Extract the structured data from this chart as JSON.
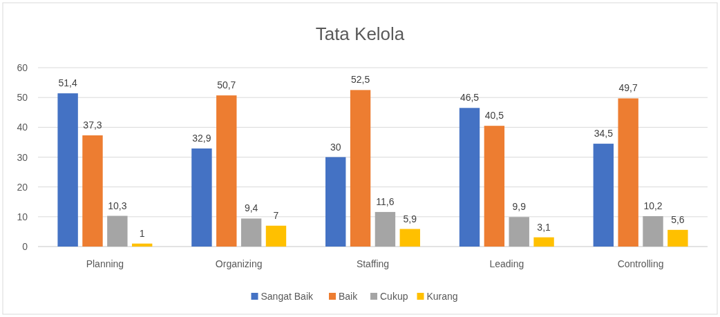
{
  "chart_data": {
    "type": "bar",
    "title": "Tata Kelola",
    "categories": [
      "Planning",
      "Organizing",
      "Staffing",
      "Leading",
      "Controlling"
    ],
    "series": [
      {
        "name": "Sangat Baik",
        "color": "#4472c4",
        "values": [
          51.4,
          32.9,
          30,
          46.5,
          34.5
        ],
        "value_labels": [
          "51,4",
          "32,9",
          "30",
          "46,5",
          "34,5"
        ]
      },
      {
        "name": "Baik",
        "color": "#ed7d31",
        "values": [
          37.3,
          50.7,
          52.5,
          40.5,
          49.7
        ],
        "value_labels": [
          "37,3",
          "50,7",
          "52,5",
          "40,5",
          "49,7"
        ]
      },
      {
        "name": "Cukup",
        "color": "#a5a5a5",
        "values": [
          10.3,
          9.4,
          11.6,
          9.9,
          10.2
        ],
        "value_labels": [
          "10,3",
          "9,4",
          "11,6",
          "9,9",
          "10,2"
        ]
      },
      {
        "name": "Kurang",
        "color": "#ffc000",
        "values": [
          1,
          7,
          5.9,
          3.1,
          5.6
        ],
        "value_labels": [
          "1",
          "7",
          "5,9",
          "3,1",
          "5,6"
        ]
      }
    ],
    "ylim": [
      0,
      60
    ],
    "yticks": [
      0,
      10,
      20,
      30,
      40,
      50,
      60
    ],
    "grid": "y",
    "legend": "bottom"
  }
}
